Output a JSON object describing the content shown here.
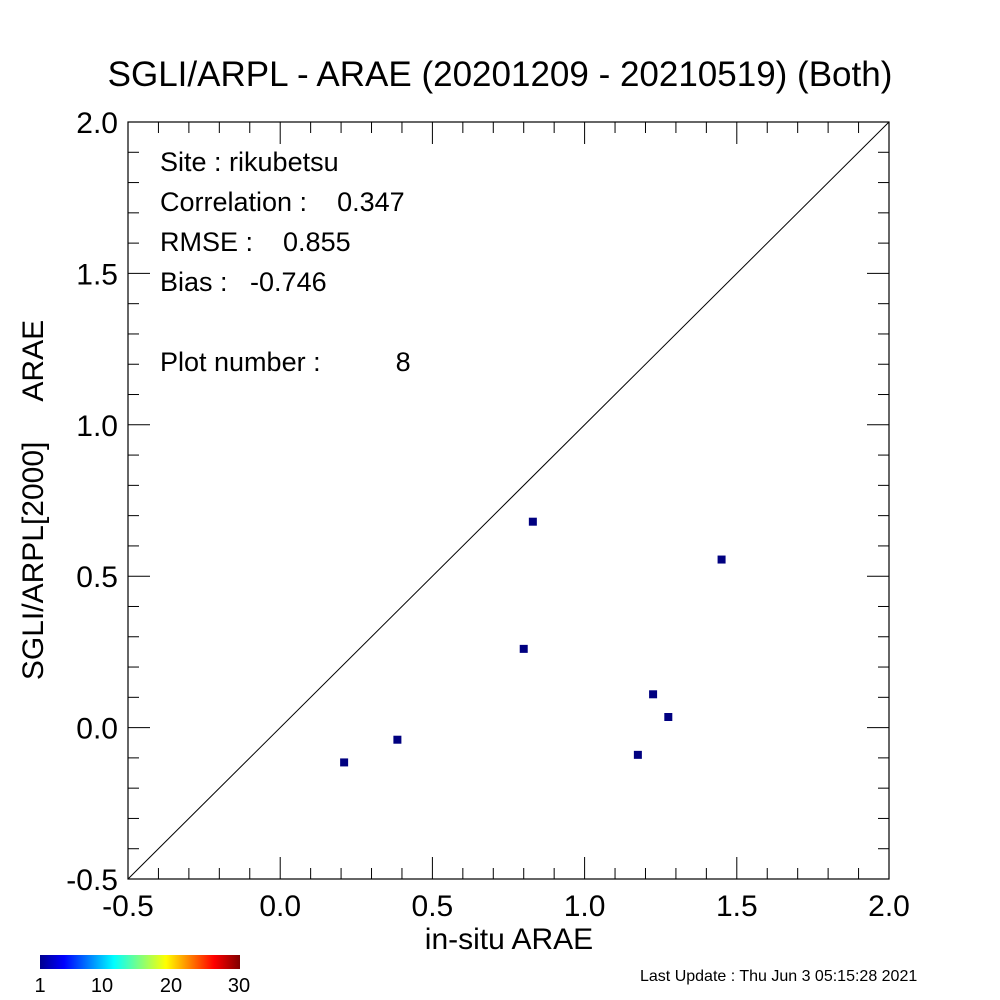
{
  "title": "SGLI/ARPL - ARAE (20201209 - 20210519) (Both)",
  "stats": [
    {
      "label": "Site :",
      "value": "rikubetsu"
    },
    {
      "label": "Correlation :",
      "value": "0.347"
    },
    {
      "label": "RMSE :",
      "value": "0.855"
    },
    {
      "label": "Bias :",
      "value": "-0.746"
    },
    {
      "label": "Plot number :",
      "value": "8"
    }
  ],
  "colorbar": {
    "ticks": [
      "1",
      "10",
      "20",
      "30"
    ]
  },
  "footer": "Last Update : Thu Jun  3 05:15:28 2021",
  "chart_data": {
    "type": "scatter",
    "title": "SGLI/ARPL - ARAE (20201209 - 20210519) (Both)",
    "xlabel": "in-situ ARAE",
    "ylabel": [
      "SGLI/ARPL[2000]",
      "ARAE"
    ],
    "xlim": [
      -0.5,
      2.0
    ],
    "ylim": [
      -0.5,
      2.0
    ],
    "x_ticks": [
      "-0.5",
      "0.0",
      "0.5",
      "1.0",
      "1.5",
      "2.0"
    ],
    "y_ticks": [
      "-0.5",
      "0.0",
      "0.5",
      "1.0",
      "1.5",
      "2.0"
    ],
    "grid": false,
    "one_to_one_line": true,
    "point_color": "#000080",
    "points": [
      {
        "x": 0.21,
        "y": -0.115
      },
      {
        "x": 0.385,
        "y": -0.04
      },
      {
        "x": 0.8,
        "y": 0.26
      },
      {
        "x": 0.83,
        "y": 0.68
      },
      {
        "x": 1.175,
        "y": -0.09
      },
      {
        "x": 1.225,
        "y": 0.11
      },
      {
        "x": 1.275,
        "y": 0.035
      },
      {
        "x": 1.45,
        "y": 0.555
      }
    ]
  }
}
